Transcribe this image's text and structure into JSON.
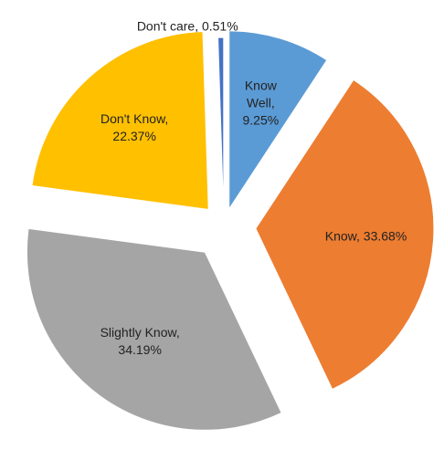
{
  "chart_data": {
    "type": "pie",
    "categories": [
      "Know Well",
      "Know",
      "Slightly Know",
      "Don't Know",
      "Don't care"
    ],
    "values": [
      9.25,
      33.68,
      34.19,
      22.37,
      0.51
    ],
    "value_labels": [
      "Know Well, 9.25%",
      "Know, 33.68%",
      "Slightly Know, 34.19%",
      "Don't Know, 22.37%",
      "Don't care, 0.51%"
    ],
    "colors": [
      "#5b9bd5",
      "#ed7d31",
      "#a5a5a5",
      "#ffc000",
      "#4472c4"
    ]
  }
}
